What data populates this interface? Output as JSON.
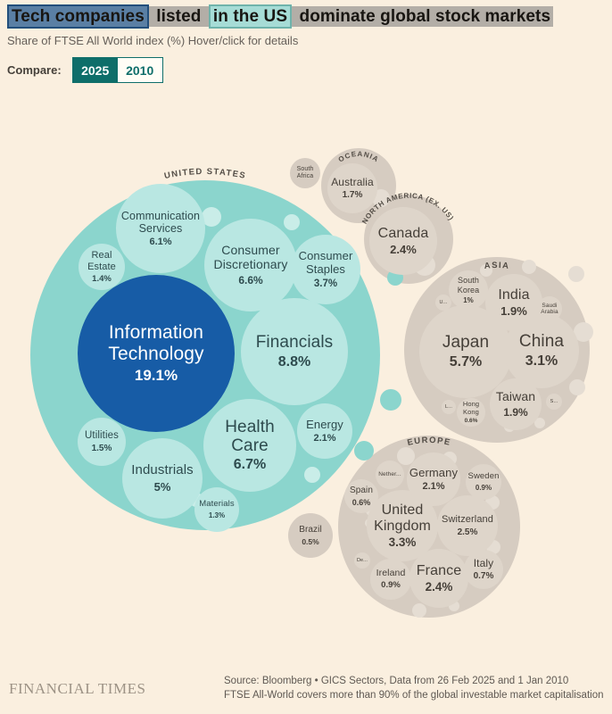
{
  "header": {
    "title_parts": [
      {
        "text": "Tech companies",
        "highlight": "blue"
      },
      {
        "text": " listed ",
        "highlight": "grey"
      },
      {
        "text": "in the US",
        "highlight": "teal"
      },
      {
        "text": " dominate global stock markets",
        "highlight": "grey"
      }
    ],
    "subtitle": "Share of FTSE All World index (%) Hover/click for details",
    "compare_label": "Compare:",
    "years": [
      "2025",
      "2010"
    ],
    "selected_year": "2025"
  },
  "colors": {
    "background": "#FAEFDF",
    "us_circle_teal": "#8BD5CD",
    "us_sector_teal": "#B9E7E2",
    "info_tech_blue": "#175CA6",
    "region_grey": "#D6CCC1",
    "country_grey": "#DED5CA",
    "accent_teal": "#0E6E6A",
    "highlight_blue": "#5A7FA4",
    "highlight_teal": "#A6DCD6",
    "highlight_grey": "#B3AEA7"
  },
  "chart_data": {
    "type": "circle-packing",
    "title": "Tech companies listed in the US dominate global stock markets",
    "unit": "% share of FTSE All World index",
    "year_shown": "2025",
    "groups": [
      {
        "id": "united-states",
        "name": "UNITED STATES",
        "children": [
          {
            "id": "info-tech",
            "label_lines": [
              "Information",
              "Technology"
            ],
            "value": 19.1,
            "pct": "19.1%"
          },
          {
            "id": "financials",
            "label_lines": [
              "Financials"
            ],
            "value": 8.8,
            "pct": "8.8%"
          },
          {
            "id": "health-care",
            "label_lines": [
              "Health",
              "Care"
            ],
            "value": 6.7,
            "pct": "6.7%"
          },
          {
            "id": "consumer-discretionary",
            "label_lines": [
              "Consumer",
              "Discretionary"
            ],
            "value": 6.6,
            "pct": "6.6%"
          },
          {
            "id": "communication-services",
            "label_lines": [
              "Communication",
              "Services"
            ],
            "value": 6.1,
            "pct": "6.1%"
          },
          {
            "id": "industrials",
            "label_lines": [
              "Industrials"
            ],
            "value": 5,
            "pct": "5%"
          },
          {
            "id": "consumer-staples",
            "label_lines": [
              "Consumer",
              "Staples"
            ],
            "value": 3.7,
            "pct": "3.7%"
          },
          {
            "id": "energy",
            "label_lines": [
              "Energy"
            ],
            "value": 2.1,
            "pct": "2.1%"
          },
          {
            "id": "utilities",
            "label_lines": [
              "Utilities"
            ],
            "value": 1.5,
            "pct": "1.5%"
          },
          {
            "id": "real-estate",
            "label_lines": [
              "Real",
              "Estate"
            ],
            "value": 1.4,
            "pct": "1.4%"
          },
          {
            "id": "materials",
            "label_lines": [
              "Materials"
            ],
            "value": 1.3,
            "pct": "1.3%"
          }
        ]
      },
      {
        "id": "oceania",
        "name": "OCEANIA",
        "children": [
          {
            "id": "australia",
            "label_lines": [
              "Australia"
            ],
            "value": 1.7,
            "pct": "1.7%"
          }
        ]
      },
      {
        "id": "north-america-ex-us",
        "name": "NORTH AMERICA (EX. US)",
        "children": [
          {
            "id": "canada",
            "label_lines": [
              "Canada"
            ],
            "value": 2.4,
            "pct": "2.4%"
          }
        ]
      },
      {
        "id": "asia",
        "name": "ASIA",
        "children": [
          {
            "id": "japan",
            "label_lines": [
              "Japan"
            ],
            "value": 5.7,
            "pct": "5.7%"
          },
          {
            "id": "china",
            "label_lines": [
              "China"
            ],
            "value": 3.1,
            "pct": "3.1%"
          },
          {
            "id": "india",
            "label_lines": [
              "India"
            ],
            "value": 1.9,
            "pct": "1.9%"
          },
          {
            "id": "taiwan",
            "label_lines": [
              "Taiwan"
            ],
            "value": 1.9,
            "pct": "1.9%"
          },
          {
            "id": "south-korea",
            "label_lines": [
              "South",
              "Korea"
            ],
            "value": 1,
            "pct": "1%"
          },
          {
            "id": "hong-kong",
            "label_lines": [
              "Hong",
              "Kong"
            ],
            "value": 0.6,
            "pct": "0.6%"
          },
          {
            "id": "saudi-arabia",
            "label_lines": [
              "Saudi",
              "Arabia"
            ],
            "value": null,
            "pct": ""
          },
          {
            "id": "asia-small-u",
            "label_lines": [
              "U..."
            ],
            "value": null,
            "pct": ""
          },
          {
            "id": "asia-small-l",
            "label_lines": [
              "L..."
            ],
            "value": null,
            "pct": ""
          },
          {
            "id": "asia-small-s",
            "label_lines": [
              "S..."
            ],
            "value": null,
            "pct": ""
          }
        ]
      },
      {
        "id": "europe",
        "name": "EUROPE",
        "children": [
          {
            "id": "united-kingdom",
            "label_lines": [
              "United",
              "Kingdom"
            ],
            "value": 3.3,
            "pct": "3.3%"
          },
          {
            "id": "switzerland",
            "label_lines": [
              "Switzerland"
            ],
            "value": 2.5,
            "pct": "2.5%"
          },
          {
            "id": "france",
            "label_lines": [
              "France"
            ],
            "value": 2.4,
            "pct": "2.4%"
          },
          {
            "id": "germany",
            "label_lines": [
              "Germany"
            ],
            "value": 2.1,
            "pct": "2.1%"
          },
          {
            "id": "sweden",
            "label_lines": [
              "Sweden"
            ],
            "value": 0.9,
            "pct": "0.9%"
          },
          {
            "id": "ireland",
            "label_lines": [
              "Ireland"
            ],
            "value": 0.9,
            "pct": "0.9%"
          },
          {
            "id": "italy",
            "label_lines": [
              "Italy"
            ],
            "value": 0.7,
            "pct": "0.7%"
          },
          {
            "id": "spain",
            "label_lines": [
              "Spain"
            ],
            "value": 0.6,
            "pct": "0.6%"
          },
          {
            "id": "netherlands",
            "label_lines": [
              "Nether..."
            ],
            "value": null,
            "pct": ""
          },
          {
            "id": "europe-small-de",
            "label_lines": [
              "De..."
            ],
            "value": null,
            "pct": ""
          }
        ]
      },
      {
        "id": "standalone",
        "name": "",
        "children": [
          {
            "id": "south-africa",
            "label_lines": [
              "South",
              "Africa"
            ],
            "value": null,
            "pct": ""
          },
          {
            "id": "brazil",
            "label_lines": [
              "Brazil"
            ],
            "value": 0.5,
            "pct": "0.5%"
          }
        ]
      }
    ]
  },
  "footer": {
    "logo": "FINANCIAL TIMES",
    "source_line1": "Source: Bloomberg • GICS Sectors, Data from 26 Feb 2025 and 1 Jan 2010",
    "source_line2": "FTSE All-World covers more than 90% of the global investable market capitalisation"
  }
}
